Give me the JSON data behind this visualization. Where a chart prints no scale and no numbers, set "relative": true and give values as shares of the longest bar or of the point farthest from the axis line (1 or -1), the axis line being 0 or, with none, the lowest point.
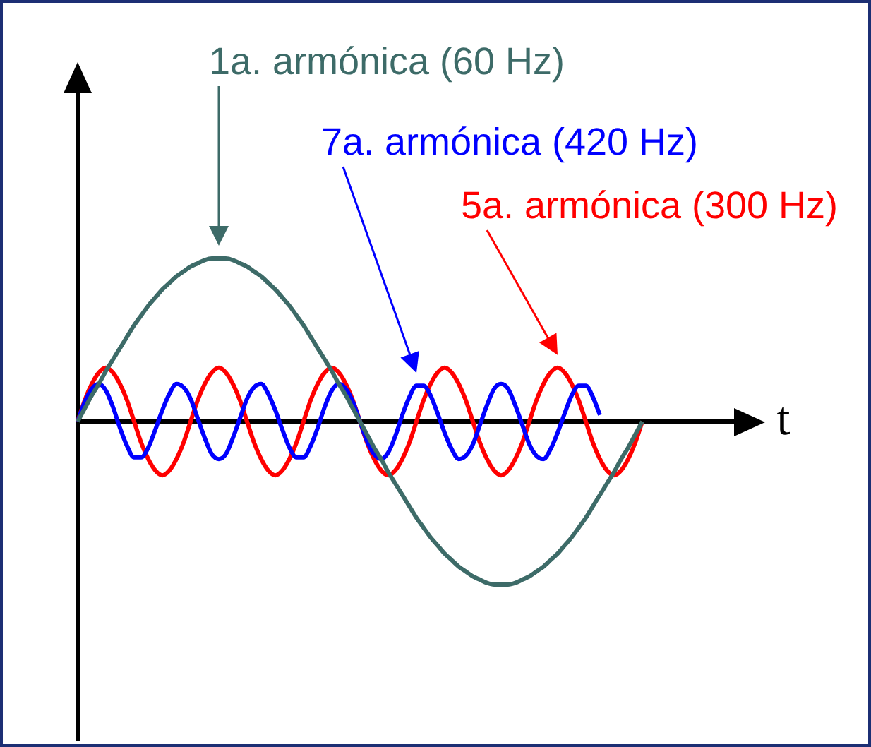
{
  "chart_data": {
    "type": "line",
    "relative": true,
    "xlabel": "t",
    "legend": false,
    "marker": "none",
    "line_style": "solid",
    "categories": [
      null,
      null,
      null,
      null,
      null,
      null,
      null,
      null,
      null,
      null,
      null,
      null,
      null,
      null,
      null,
      null,
      null,
      null,
      null,
      null,
      null,
      null,
      null,
      null,
      null,
      null,
      null,
      null,
      null,
      null,
      null,
      null,
      null,
      null,
      null,
      null,
      null,
      null,
      null,
      null,
      null,
      null,
      null,
      null,
      null,
      null,
      null,
      null,
      null,
      null,
      null,
      null,
      null,
      null,
      null,
      null,
      null,
      null,
      null,
      null,
      null,
      null,
      null,
      null,
      null,
      null,
      null,
      null,
      null,
      null,
      null,
      null,
      null,
      null,
      null,
      null,
      null,
      null,
      null,
      null,
      null
    ],
    "series": [
      {
        "name": "1a. armónica (60 Hz)",
        "color": "#3d6b68",
        "values": [
          0,
          0.08,
          0.16,
          0.23,
          0.31,
          0.38,
          0.45,
          0.52,
          0.59,
          0.65,
          0.71,
          0.76,
          0.81,
          0.85,
          0.89,
          0.92,
          0.95,
          0.97,
          0.99,
          1,
          1,
          1,
          0.99,
          0.97,
          0.95,
          0.92,
          0.89,
          0.85,
          0.81,
          0.76,
          0.71,
          0.65,
          0.59,
          0.52,
          0.45,
          0.38,
          0.31,
          0.23,
          0.16,
          0.08,
          0,
          -0.08,
          -0.16,
          -0.23,
          -0.31,
          -0.38,
          -0.45,
          -0.52,
          -0.59,
          -0.65,
          -0.71,
          -0.76,
          -0.81,
          -0.85,
          -0.89,
          -0.92,
          -0.95,
          -0.97,
          -0.99,
          -1,
          -1,
          -1,
          -0.99,
          -0.97,
          -0.95,
          -0.92,
          -0.89,
          -0.85,
          -0.81,
          -0.76,
          -0.71,
          -0.65,
          -0.59,
          -0.52,
          -0.45,
          -0.38,
          -0.31,
          -0.23,
          -0.16,
          -0.08,
          0
        ]
      },
      {
        "name": "7a. armónica (420 Hz)",
        "color": "#0000ff",
        "values": [
          0,
          0.12,
          0.2,
          0.23,
          0.19,
          0.09,
          -0.04,
          -0.15,
          -0.22,
          -0.22,
          -0.16,
          -0.05,
          0.07,
          0.17,
          0.23,
          0.21,
          0.14,
          0.02,
          -0.1,
          -0.2,
          -0.23,
          -0.2,
          -0.1,
          0.02,
          0.14,
          0.21,
          0.23,
          0.17,
          0.07,
          -0.05,
          -0.16,
          -0.22,
          -0.22,
          -0.15,
          -0.04,
          0.09,
          0.19,
          0.23,
          0.2,
          0.12,
          0,
          -0.12,
          -0.2,
          -0.23,
          -0.19,
          -0.09,
          0.04,
          0.15,
          0.22,
          0.22,
          0.16,
          0.05,
          -0.07,
          -0.17,
          -0.23,
          -0.21,
          -0.14,
          -0.02,
          0.1,
          0.2,
          0.23,
          0.2,
          0.1,
          -0.02,
          -0.14,
          -0.21,
          -0.23,
          -0.17,
          -0.07,
          0.05,
          0.16,
          0.22,
          0.22,
          0.15,
          0.04,
          null,
          null,
          null,
          null,
          null,
          null
        ]
      },
      {
        "name": "5a. armónica (300 Hz)",
        "color": "#ff0000",
        "values": [
          0,
          0.13,
          0.23,
          0.3,
          0.33,
          0.3,
          0.23,
          0.13,
          0,
          -0.13,
          -0.23,
          -0.3,
          -0.33,
          -0.3,
          -0.23,
          -0.13,
          0,
          0.13,
          0.23,
          0.3,
          0.33,
          0.3,
          0.23,
          0.13,
          0,
          -0.13,
          -0.23,
          -0.3,
          -0.33,
          -0.3,
          -0.23,
          -0.13,
          0,
          0.13,
          0.23,
          0.3,
          0.33,
          0.3,
          0.23,
          0.13,
          0,
          -0.13,
          -0.23,
          -0.3,
          -0.33,
          -0.3,
          -0.23,
          -0.13,
          0,
          0.13,
          0.23,
          0.3,
          0.33,
          0.3,
          0.23,
          0.13,
          0,
          -0.13,
          -0.23,
          -0.3,
          -0.33,
          -0.3,
          -0.23,
          -0.13,
          0,
          0.13,
          0.23,
          0.3,
          0.33,
          0.3,
          0.23,
          0.13,
          0,
          -0.13,
          -0.23,
          -0.3,
          -0.33,
          -0.3,
          -0.23,
          -0.13,
          0
        ]
      }
    ]
  }
}
